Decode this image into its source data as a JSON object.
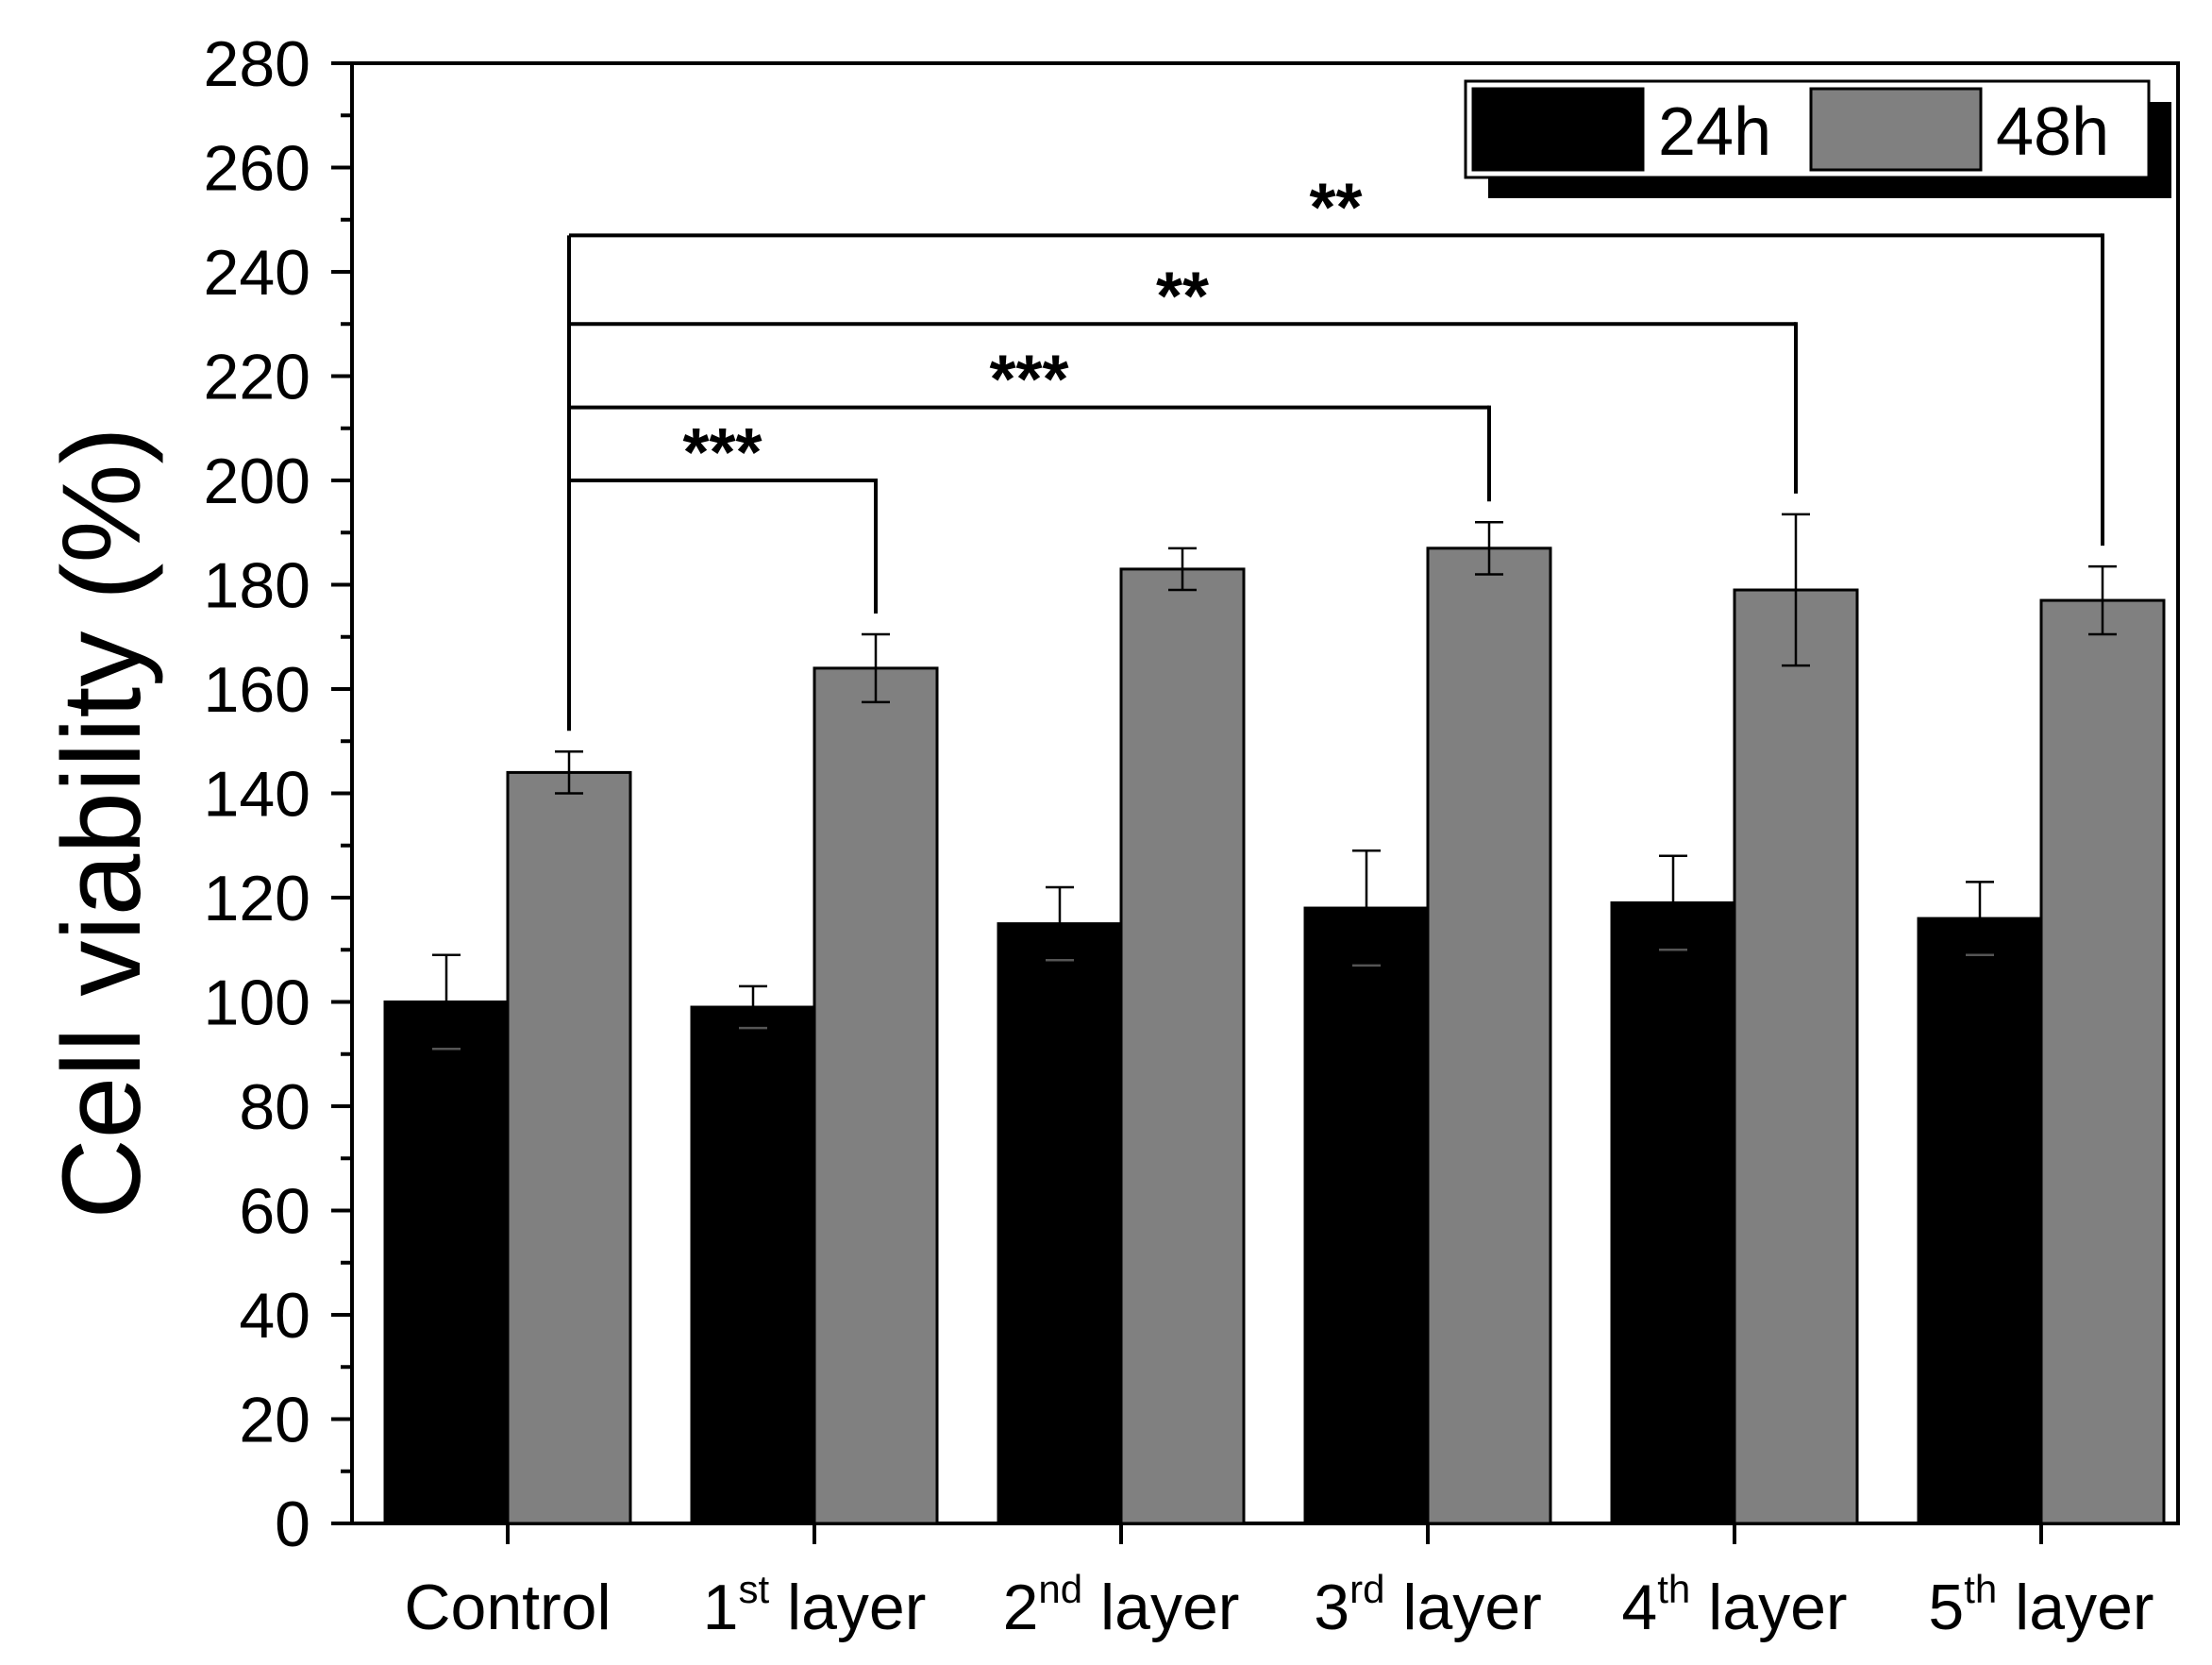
{
  "chart_data": {
    "type": "bar",
    "ylabel": "Cell viability (%)",
    "xlabel": "",
    "ylim": [
      0,
      280
    ],
    "y_ticks": [
      0,
      20,
      40,
      60,
      80,
      100,
      120,
      140,
      160,
      180,
      200,
      220,
      240,
      260,
      280
    ],
    "categories": [
      {
        "base": "Control",
        "ordinal": "",
        "suffix": ""
      },
      {
        "base": "1",
        "ordinal": "st",
        "suffix": " layer"
      },
      {
        "base": "2",
        "ordinal": "nd",
        "suffix": " layer"
      },
      {
        "base": "3",
        "ordinal": "rd",
        "suffix": " layer"
      },
      {
        "base": "4",
        "ordinal": "th",
        "suffix": " layer"
      },
      {
        "base": "5",
        "ordinal": "th",
        "suffix": " layer"
      }
    ],
    "series": [
      {
        "name": "24h",
        "color": "#000000",
        "values": [
          100,
          99,
          115,
          118,
          119,
          116
        ],
        "errors": [
          9,
          4,
          7,
          11,
          9,
          7
        ]
      },
      {
        "name": "48h",
        "color": "#808080",
        "values": [
          144,
          164,
          183,
          187,
          179,
          177
        ],
        "errors": [
          4,
          6.5,
          4,
          5,
          14.5,
          6.5
        ]
      }
    ],
    "legend_position": "top-right",
    "significance": [
      {
        "from_category": 0,
        "to_category": 1,
        "label": "***",
        "y": 200
      },
      {
        "from_category": 0,
        "to_category": 3,
        "label": "***",
        "y": 214
      },
      {
        "from_category": 0,
        "to_category": 4,
        "label": "**",
        "y": 230
      },
      {
        "from_category": 0,
        "to_category": 5,
        "label": "**",
        "y": 247
      }
    ]
  }
}
